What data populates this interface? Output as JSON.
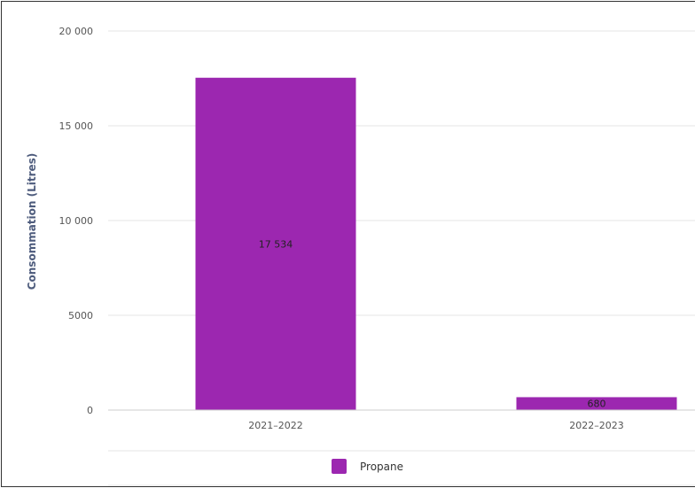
{
  "chart_data": {
    "type": "bar",
    "categories": [
      "2021–2022",
      "2022–2023"
    ],
    "series": [
      {
        "name": "Propane",
        "values": [
          17534,
          680
        ],
        "color": "#9c27b0"
      }
    ],
    "data_labels": [
      "17 534",
      "680"
    ],
    "ylabel": "Consommation (Litres)",
    "ylim": [
      0,
      20000
    ],
    "yticks": [
      0,
      5000,
      10000,
      15000,
      20000
    ],
    "ytick_labels": [
      "0",
      "5000",
      "10 000",
      "15 000",
      "20 000"
    ],
    "grid": true,
    "legend_position": "bottom-center"
  }
}
